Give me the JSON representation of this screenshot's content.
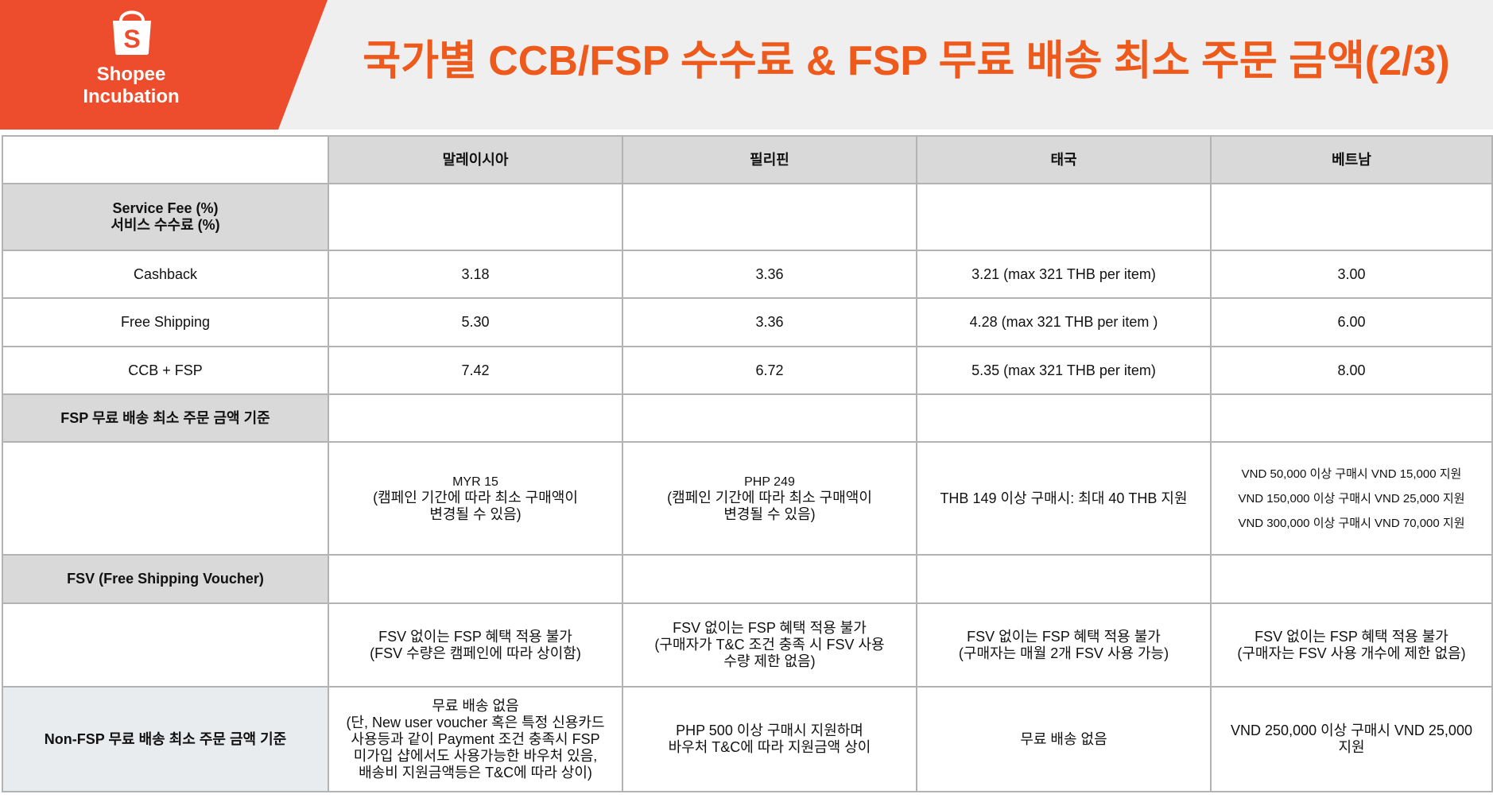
{
  "brand": {
    "logo_line1": "Shopee",
    "logo_line2": "Incubation",
    "accent_color": "#ee4d2d",
    "title_color": "#ee5a1c",
    "icon": "shopping-bag-icon"
  },
  "title": "국가별 CCB/FSP 수수료 & FSP 무료 배송 최소 주문 금액(2/3)",
  "table": {
    "columns": [
      "",
      "말레이시아",
      "필리핀",
      "태국",
      "베트남"
    ],
    "service_fee": {
      "label_line1": "Service Fee (%)",
      "label_line2": "서비스 수수료 (%)"
    },
    "cashback": {
      "label": "Cashback",
      "values": [
        "3.18",
        "3.36",
        "3.21 (max 321 THB per item)",
        "3.00"
      ]
    },
    "free_shipping": {
      "label": "Free Shipping",
      "values": [
        "5.30",
        "3.36",
        "4.28 (max 321 THB per item )",
        "6.00"
      ]
    },
    "ccb_fsp": {
      "label": "CCB + FSP",
      "values": [
        "7.42",
        "6.72",
        "5.35 (max 321 THB per item)",
        "8.00"
      ]
    },
    "fsp_min": {
      "label": "FSP 무료 배송 최소 주문 금액 기준",
      "my": {
        "line1": "MYR 15",
        "line2": "(캠페인 기간에 따라 최소 구매액이",
        "line3": "변경될 수 있음)"
      },
      "ph": {
        "line1": "PHP 249",
        "line2": "(캠페인 기간에 따라 최소 구매액이",
        "line3": "변경될 수 있음)"
      },
      "th": "THB 149 이상 구매시: 최대 40 THB 지원",
      "vn": [
        "VND 50,000 이상 구매시 VND 15,000 지원",
        "VND 150,000 이상 구매시 VND 25,000 지원",
        "VND 300,000 이상 구매시 VND 70,000 지원"
      ]
    },
    "fsv": {
      "label": "FSV (Free Shipping Voucher)",
      "my": {
        "line1": "FSV 없이는 FSP 혜택 적용 불가",
        "line2": "(FSV 수량은 캠페인에 따라 상이함)"
      },
      "ph": {
        "line1": "FSV 없이는 FSP 혜택 적용 불가",
        "line2": "(구매자가 T&C 조건 충족 시 FSV 사용",
        "line3": "수량 제한 없음)"
      },
      "th": {
        "line1": "FSV 없이는 FSP 혜택 적용 불가",
        "line2": "(구매자는 매월 2개 FSV 사용 가능)"
      },
      "vn": {
        "line1": "FSV 없이는 FSP 혜택 적용 불가",
        "line2": "(구매자는 FSV 사용 개수에 제한 없음)"
      }
    },
    "non_fsp": {
      "label": "Non-FSP 무료 배송 최소 주문 금액 기준",
      "my": {
        "line1": "무료 배송 없음",
        "line2": "(단, New user voucher 혹은 특정 신용카드",
        "line3": "사용등과 같이 Payment 조건 충족시 FSP",
        "line4": "미가입 샵에서도 사용가능한 바우처 있음,",
        "line5": "배송비 지원금액등은 T&C에 따라 상이)"
      },
      "ph": {
        "line1": "PHP 500 이상 구매시 지원하며",
        "line2": "바우처 T&C에 따라 지원금액 상이"
      },
      "th": "무료 배송 없음",
      "vn": {
        "line1": "VND 250,000 이상 구매시 VND 25,000",
        "line2": "지원"
      }
    }
  }
}
